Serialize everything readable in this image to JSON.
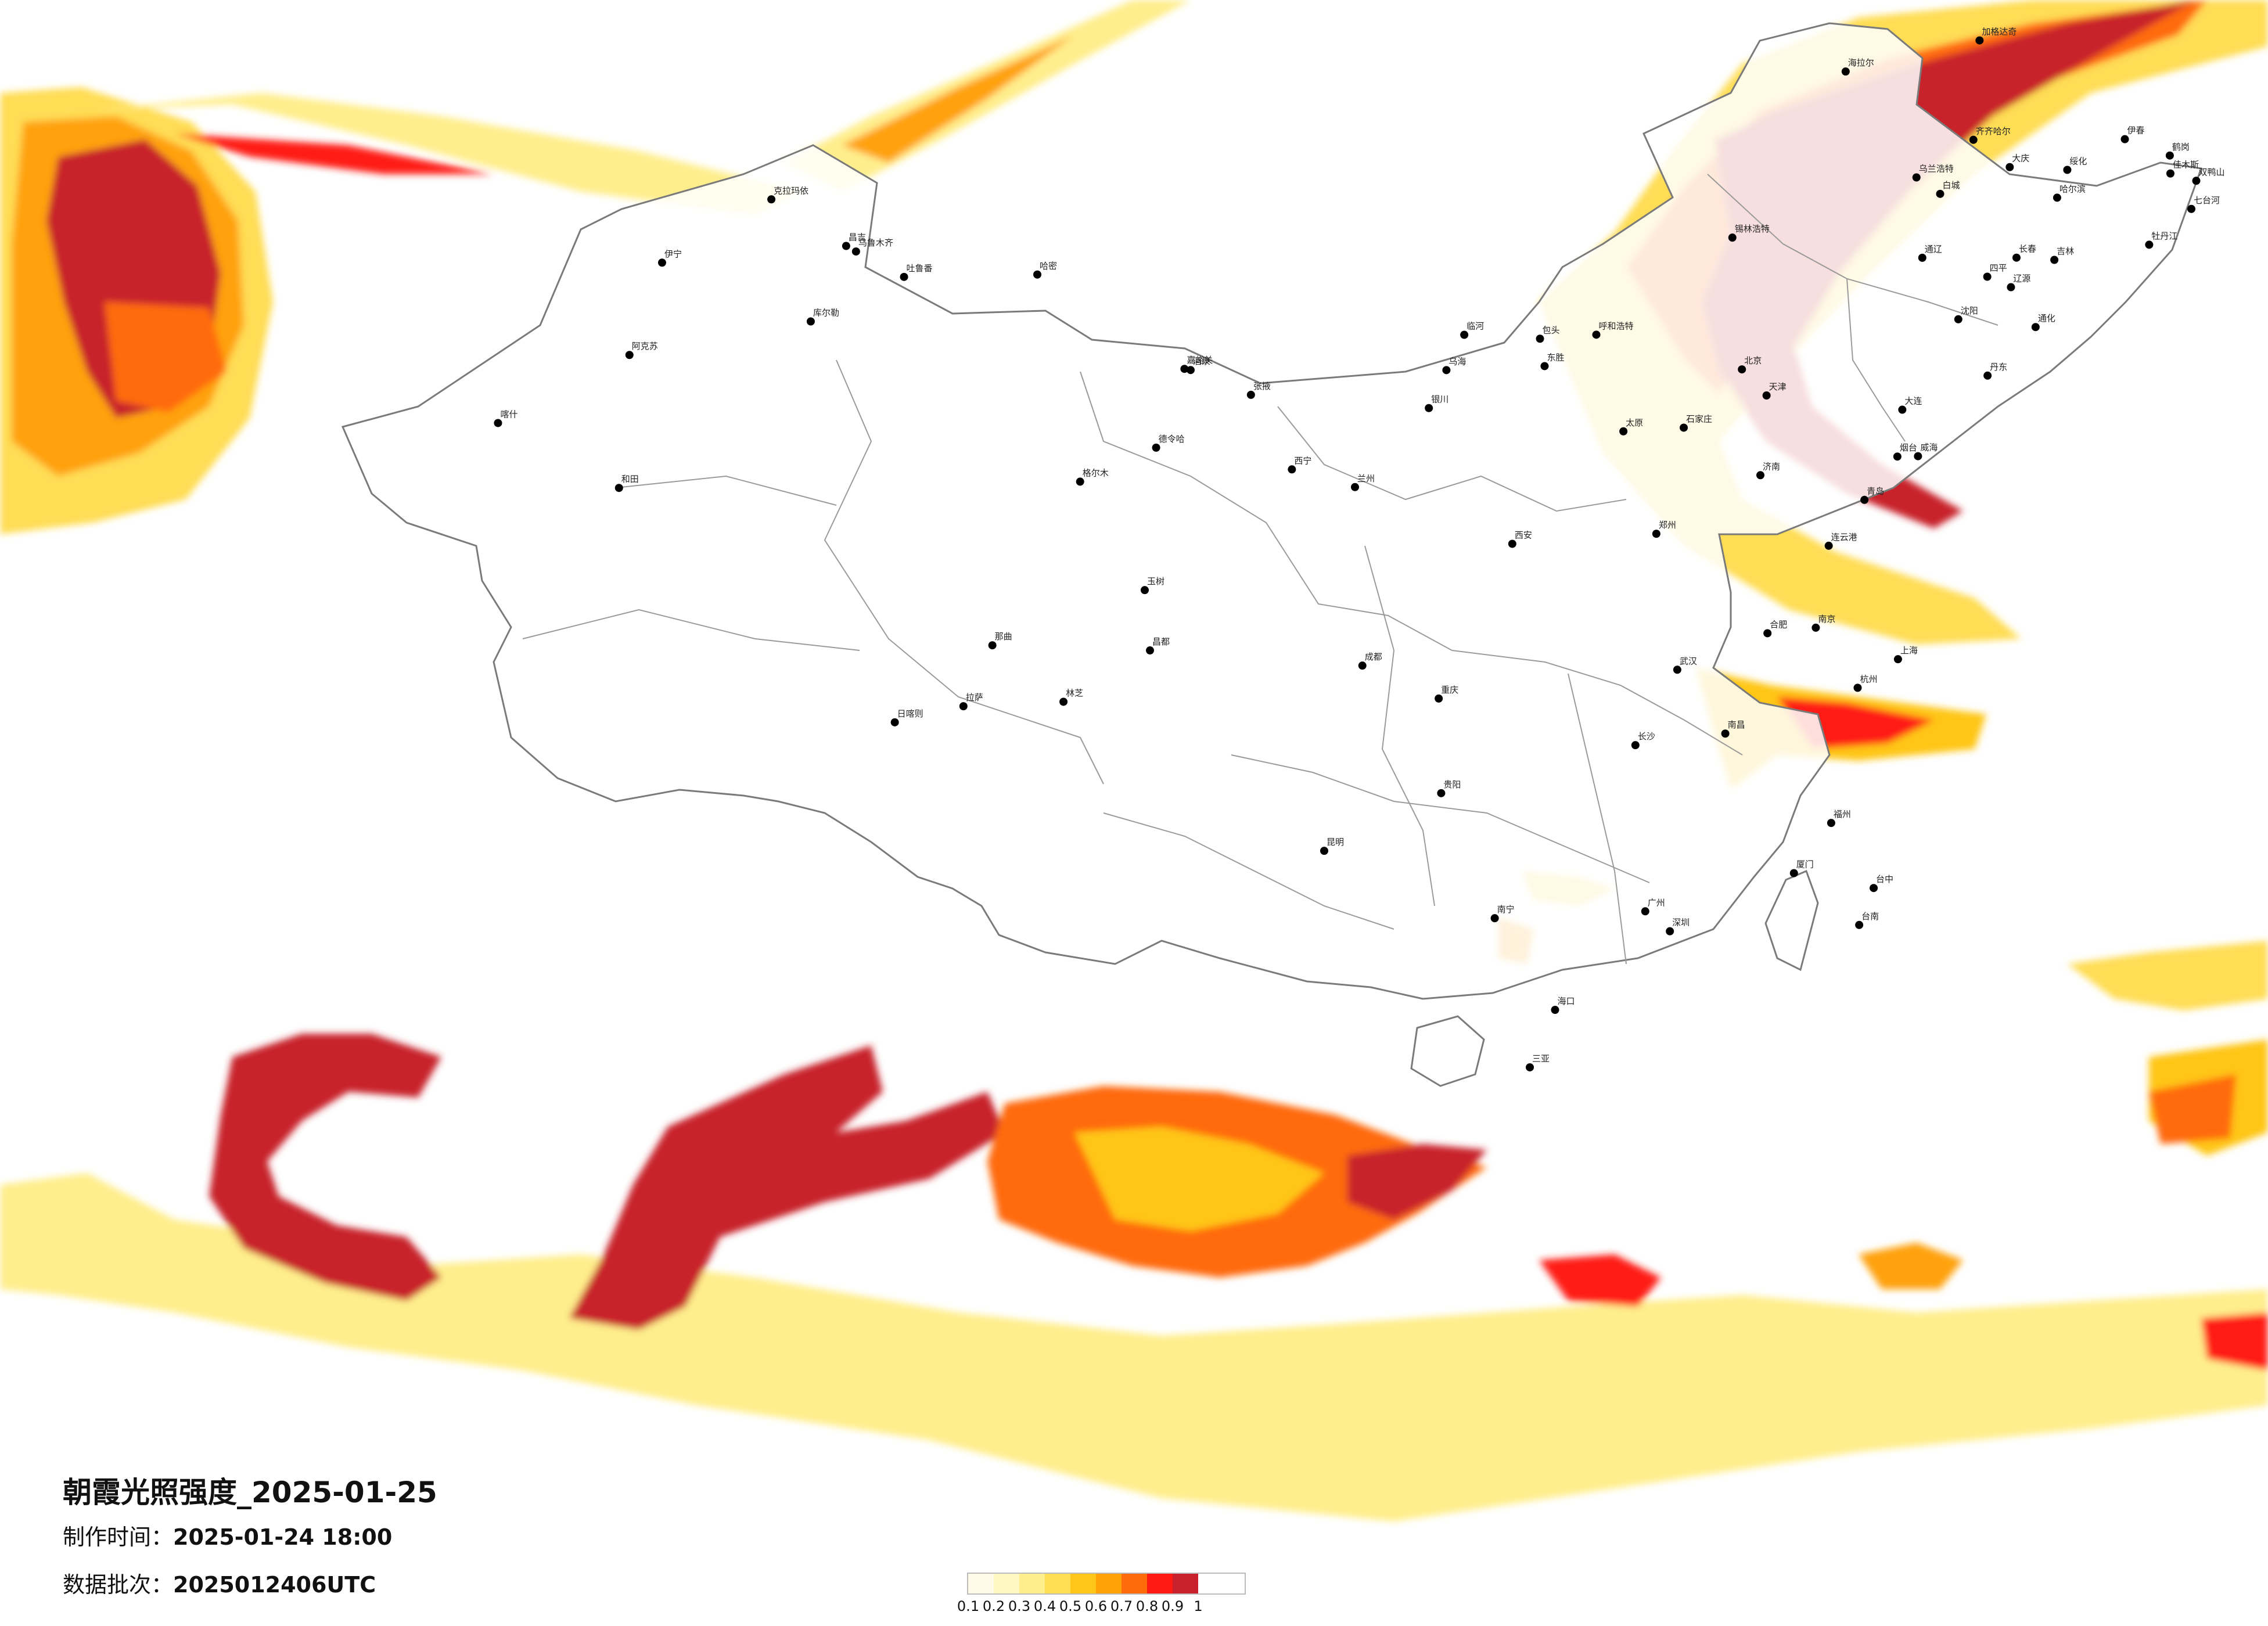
{
  "title": "朝霞光照强度_2025-01-25",
  "made_label": "制作时间：",
  "made_value": "2025-01-24 18:00",
  "batch_label": "数据批次：",
  "batch_value": "2025012406UTC",
  "legend": {
    "ticks": [
      "0.1",
      "0.2",
      "0.3",
      "0.4",
      "0.5",
      "0.6",
      "0.7",
      "0.8",
      "0.9",
      "1"
    ],
    "colors": [
      "#fffbe8",
      "#fff7c2",
      "#ffee8c",
      "#ffdd55",
      "#ffc619",
      "#ffa20a",
      "#ff6a0a",
      "#ff1a14",
      "#c8202c"
    ]
  },
  "cities": [
    {
      "name": "台中",
      "lon": 120.68,
      "lat": 24.15
    },
    {
      "name": "台南",
      "lon": 120.21,
      "lat": 22.99
    },
    {
      "name": "海口",
      "lon": 110.33,
      "lat": 20.03
    },
    {
      "name": "哈尔滨",
      "lon": 126.64,
      "lat": 45.76
    },
    {
      "name": "长春",
      "lon": 125.32,
      "lat": 43.82
    },
    {
      "name": "吉林",
      "lon": 126.55,
      "lat": 43.84
    },
    {
      "name": "伊春",
      "lon": 128.84,
      "lat": 47.73
    },
    {
      "name": "鹤岗",
      "lon": 130.3,
      "lat": 47.35
    },
    {
      "name": "佳木斯",
      "lon": 130.32,
      "lat": 46.8
    },
    {
      "name": "七台河",
      "lon": 131.0,
      "lat": 45.77
    },
    {
      "name": "双鸭山",
      "lon": 131.16,
      "lat": 46.65
    },
    {
      "name": "牡丹江",
      "lon": 129.63,
      "lat": 44.55
    },
    {
      "name": "绥化",
      "lon": 126.97,
      "lat": 46.64
    },
    {
      "name": "大庆",
      "lon": 125.1,
      "lat": 46.59
    },
    {
      "name": "齐齐哈尔",
      "lon": 123.92,
      "lat": 47.35
    },
    {
      "name": "加格达奇",
      "lon": 124.12,
      "lat": 50.42
    },
    {
      "name": "海拉尔",
      "lon": 119.77,
      "lat": 49.21
    },
    {
      "name": "乌兰浩特",
      "lon": 122.07,
      "lat": 46.08
    },
    {
      "name": "白城",
      "lon": 122.84,
      "lat": 45.62
    },
    {
      "name": "通辽",
      "lon": 122.26,
      "lat": 43.62
    },
    {
      "name": "四平",
      "lon": 124.37,
      "lat": 43.17
    },
    {
      "name": "辽源",
      "lon": 125.14,
      "lat": 42.9
    },
    {
      "name": "通化",
      "lon": 125.94,
      "lat": 41.73
    },
    {
      "name": "沈阳",
      "lon": 123.43,
      "lat": 41.8
    },
    {
      "name": "丹东",
      "lon": 124.38,
      "lat": 40.13
    },
    {
      "name": "大连",
      "lon": 121.61,
      "lat": 38.91
    },
    {
      "name": "烟台",
      "lon": 121.45,
      "lat": 37.46
    },
    {
      "name": "威海",
      "lon": 122.12,
      "lat": 37.51
    },
    {
      "name": "青岛",
      "lon": 120.38,
      "lat": 36.07
    },
    {
      "name": "连云港",
      "lon": 119.22,
      "lat": 34.6
    },
    {
      "name": "锡林浩特",
      "lon": 116.09,
      "lat": 43.94
    },
    {
      "name": "呼和浩特",
      "lon": 111.67,
      "lat": 40.82
    },
    {
      "name": "包头",
      "lon": 109.84,
      "lat": 40.66
    },
    {
      "name": "东胜",
      "lon": 109.99,
      "lat": 39.82
    },
    {
      "name": "临河",
      "lon": 107.38,
      "lat": 40.75
    },
    {
      "name": "乌海",
      "lon": 106.8,
      "lat": 39.66
    },
    {
      "name": "北京",
      "lon": 116.4,
      "lat": 39.9
    },
    {
      "name": "天津",
      "lon": 117.2,
      "lat": 39.13
    },
    {
      "name": "石家庄",
      "lon": 114.51,
      "lat": 38.04
    },
    {
      "name": "太原",
      "lon": 112.55,
      "lat": 37.87
    },
    {
      "name": "济南",
      "lon": 117.0,
      "lat": 36.67
    },
    {
      "name": "郑州",
      "lon": 113.62,
      "lat": 34.75
    },
    {
      "name": "西安",
      "lon": 108.94,
      "lat": 34.34
    },
    {
      "name": "兰州",
      "lon": 103.83,
      "lat": 36.06
    },
    {
      "name": "西宁",
      "lon": 101.78,
      "lat": 36.62
    },
    {
      "name": "银川",
      "lon": 106.23,
      "lat": 38.49
    },
    {
      "name": "武汉",
      "lon": 114.3,
      "lat": 30.59
    },
    {
      "name": "长沙",
      "lon": 112.94,
      "lat": 28.23
    },
    {
      "name": "南昌",
      "lon": 115.86,
      "lat": 28.68
    },
    {
      "name": "合肥",
      "lon": 117.23,
      "lat": 31.82
    },
    {
      "name": "南京",
      "lon": 118.8,
      "lat": 32.06
    },
    {
      "name": "上海",
      "lon": 121.47,
      "lat": 31.23
    },
    {
      "name": "杭州",
      "lon": 120.16,
      "lat": 30.28
    },
    {
      "name": "福州",
      "lon": 119.3,
      "lat": 26.08
    },
    {
      "name": "厦门",
      "lon": 118.09,
      "lat": 24.48
    },
    {
      "name": "广州",
      "lon": 113.26,
      "lat": 23.13
    },
    {
      "name": "深圳",
      "lon": 114.06,
      "lat": 22.54
    },
    {
      "name": "南宁",
      "lon": 108.37,
      "lat": 22.82
    },
    {
      "name": "贵阳",
      "lon": 106.63,
      "lat": 26.65
    },
    {
      "name": "昆明",
      "lon": 102.83,
      "lat": 24.88
    },
    {
      "name": "成都",
      "lon": 104.07,
      "lat": 30.57
    },
    {
      "name": "重庆",
      "lon": 106.55,
      "lat": 29.56
    },
    {
      "name": "拉萨",
      "lon": 91.11,
      "lat": 29.65
    },
    {
      "name": "日喀则",
      "lon": 88.88,
      "lat": 29.27
    },
    {
      "name": "林芝",
      "lon": 94.36,
      "lat": 29.65
    },
    {
      "name": "那曲",
      "lon": 92.05,
      "lat": 31.48
    },
    {
      "name": "昌都",
      "lon": 97.17,
      "lat": 31.14
    },
    {
      "name": "格尔木",
      "lon": 94.9,
      "lat": 36.4
    },
    {
      "name": "德令哈",
      "lon": 97.37,
      "lat": 37.37
    },
    {
      "name": "玉树",
      "lon": 97.0,
      "lat": 33.0
    },
    {
      "name": "乌鲁木齐",
      "lon": 87.62,
      "lat": 43.82
    },
    {
      "name": "昌吉",
      "lon": 87.3,
      "lat": 44.01
    },
    {
      "name": "伊宁",
      "lon": 81.32,
      "lat": 43.92
    },
    {
      "name": "克拉玛依",
      "lon": 84.87,
      "lat": 45.6
    },
    {
      "name": "库尔勒",
      "lon": 86.15,
      "lat": 41.76
    },
    {
      "name": "阿克苏",
      "lon": 80.26,
      "lat": 41.17
    },
    {
      "name": "喀什",
      "lon": 75.99,
      "lat": 39.47
    },
    {
      "name": "和田",
      "lon": 79.92,
      "lat": 37.11
    },
    {
      "name": "哈密",
      "lon": 93.51,
      "lat": 42.82
    },
    {
      "name": "吐鲁番",
      "lon": 89.18,
      "lat": 42.95
    },
    {
      "name": "酒泉",
      "lon": 98.49,
      "lat": 39.73
    },
    {
      "name": "张掖",
      "lon": 100.45,
      "lat": 38.93
    },
    {
      "name": "嘉峪关",
      "lon": 98.29,
      "lat": 39.77
    },
    {
      "name": "三亚",
      "lon": 109.51,
      "lat": 18.25
    }
  ]
}
